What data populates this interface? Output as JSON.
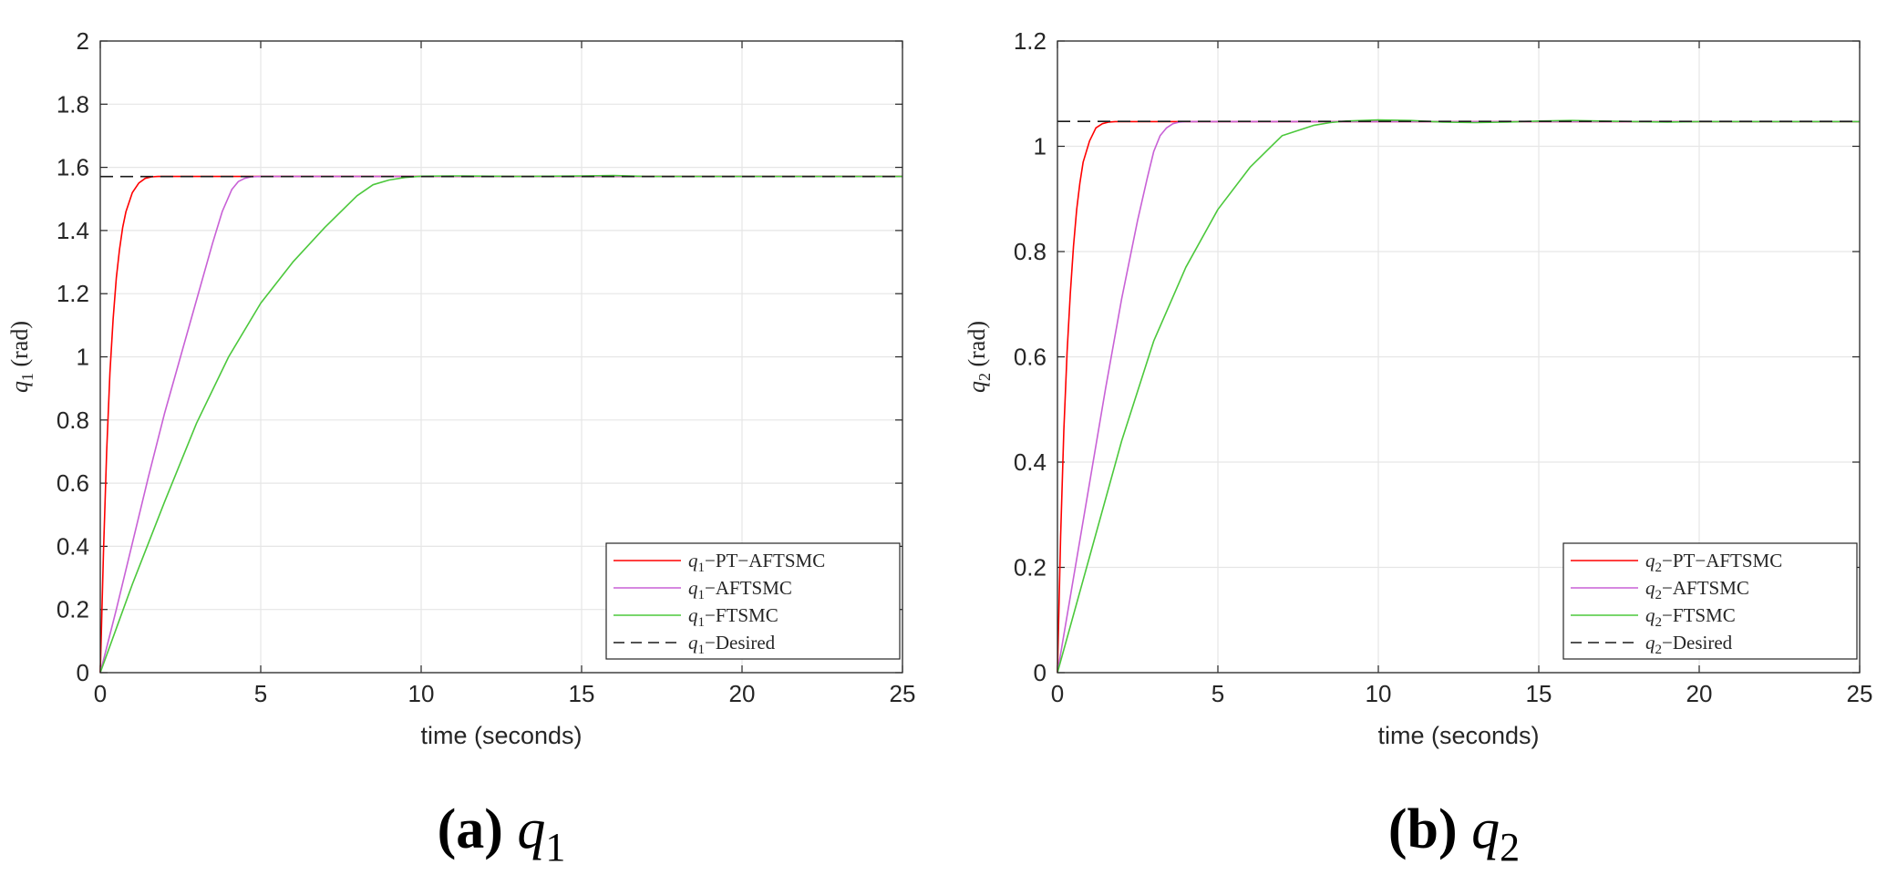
{
  "chart_data": [
    {
      "type": "line",
      "caption_label": "(a)",
      "caption_symbol": "q",
      "caption_index": "1",
      "ylabel_symbol": "q",
      "ylabel_index": "1",
      "ylabel_unit": "(rad)",
      "xlabel": "time (seconds)",
      "xlim": [
        0,
        25
      ],
      "ylim": [
        0,
        2
      ],
      "xticks": [
        "0",
        "5",
        "10",
        "15",
        "20",
        "25"
      ],
      "yticks": [
        "0",
        "0.2",
        "0.4",
        "0.6",
        "0.8",
        "1",
        "1.2",
        "1.4",
        "1.6",
        "1.8",
        "2"
      ],
      "grid": true,
      "legend_position": "bottom-right",
      "series": [
        {
          "name": "q1−PT−AFTSMC",
          "legend_symbol": "q",
          "legend_index": "1",
          "legend_suffix": "−PT−AFTSMC",
          "color": "#ff0000",
          "dash": "solid",
          "x": [
            0,
            0.1,
            0.2,
            0.3,
            0.4,
            0.5,
            0.6,
            0.7,
            0.8,
            1.0,
            1.2,
            1.4,
            1.6,
            1.8,
            2.0,
            25
          ],
          "y": [
            0,
            0.38,
            0.7,
            0.95,
            1.12,
            1.25,
            1.34,
            1.41,
            1.46,
            1.52,
            1.55,
            1.565,
            1.57,
            1.571,
            1.571,
            1.571
          ]
        },
        {
          "name": "q1−AFTSMC",
          "legend_symbol": "q",
          "legend_index": "1",
          "legend_suffix": "−AFTSMC",
          "color": "#c861d6",
          "dash": "solid",
          "x": [
            0,
            0.5,
            1.0,
            1.5,
            2.0,
            2.5,
            3.0,
            3.5,
            3.8,
            4.1,
            4.3,
            4.5,
            4.7,
            5.0,
            25
          ],
          "y": [
            0,
            0.2,
            0.41,
            0.62,
            0.82,
            1.0,
            1.18,
            1.36,
            1.46,
            1.53,
            1.555,
            1.565,
            1.57,
            1.571,
            1.571
          ]
        },
        {
          "name": "q1−FTSMC",
          "legend_symbol": "q",
          "legend_index": "1",
          "legend_suffix": "−FTSMC",
          "color": "#4cc83c",
          "dash": "solid",
          "x": [
            0,
            1,
            2,
            3,
            4,
            5,
            6,
            7,
            8,
            8.5,
            9,
            9.5,
            10,
            11,
            13,
            15,
            16,
            17,
            20,
            25
          ],
          "y": [
            0,
            0.28,
            0.54,
            0.79,
            1.0,
            1.17,
            1.3,
            1.41,
            1.51,
            1.545,
            1.56,
            1.568,
            1.572,
            1.573,
            1.571,
            1.573,
            1.574,
            1.571,
            1.571,
            1.571
          ]
        },
        {
          "name": "q1−Desired",
          "legend_symbol": "q",
          "legend_index": "1",
          "legend_suffix": "−Desired",
          "color": "#1a1a1a",
          "dash": "dashed",
          "x": [
            0,
            25
          ],
          "y": [
            1.5708,
            1.5708
          ]
        }
      ]
    },
    {
      "type": "line",
      "caption_label": "(b)",
      "caption_symbol": "q",
      "caption_index": "2",
      "ylabel_symbol": "q",
      "ylabel_index": "2",
      "ylabel_unit": "(rad)",
      "xlabel": "time (seconds)",
      "xlim": [
        0,
        25
      ],
      "ylim": [
        0,
        1.2
      ],
      "xticks": [
        "0",
        "5",
        "10",
        "15",
        "20",
        "25"
      ],
      "yticks": [
        "0",
        "0.2",
        "0.4",
        "0.6",
        "0.8",
        "1",
        "1.2"
      ],
      "grid": true,
      "legend_position": "bottom-right",
      "series": [
        {
          "name": "q2−PT−AFTSMC",
          "legend_symbol": "q",
          "legend_index": "2",
          "legend_suffix": "−PT−AFTSMC",
          "color": "#ff0000",
          "dash": "solid",
          "x": [
            0,
            0.1,
            0.2,
            0.3,
            0.4,
            0.5,
            0.6,
            0.7,
            0.8,
            1.0,
            1.2,
            1.4,
            1.6,
            1.8,
            2.0,
            25
          ],
          "y": [
            0,
            0.26,
            0.46,
            0.61,
            0.72,
            0.81,
            0.88,
            0.93,
            0.97,
            1.01,
            1.035,
            1.043,
            1.046,
            1.047,
            1.047,
            1.047
          ]
        },
        {
          "name": "q2−AFTSMC",
          "legend_symbol": "q",
          "legend_index": "2",
          "legend_suffix": "−AFTSMC",
          "color": "#c861d6",
          "dash": "solid",
          "x": [
            0,
            0.5,
            1.0,
            1.5,
            2.0,
            2.5,
            2.8,
            3.0,
            3.2,
            3.4,
            3.6,
            3.8,
            4.0,
            25
          ],
          "y": [
            0,
            0.18,
            0.36,
            0.54,
            0.71,
            0.86,
            0.94,
            0.99,
            1.02,
            1.035,
            1.043,
            1.046,
            1.047,
            1.047
          ]
        },
        {
          "name": "q2−FTSMC",
          "legend_symbol": "q",
          "legend_index": "2",
          "legend_suffix": "−FTSMC",
          "color": "#4cc83c",
          "dash": "solid",
          "x": [
            0,
            1,
            2,
            3,
            4,
            5,
            6,
            7,
            8,
            8.5,
            9,
            10,
            11,
            12,
            13,
            14,
            15,
            16,
            17,
            18,
            19,
            20,
            25
          ],
          "y": [
            0,
            0.22,
            0.44,
            0.63,
            0.77,
            0.88,
            0.96,
            1.02,
            1.04,
            1.045,
            1.048,
            1.05,
            1.049,
            1.046,
            1.045,
            1.046,
            1.048,
            1.049,
            1.048,
            1.047,
            1.046,
            1.047,
            1.047
          ]
        },
        {
          "name": "q2−Desired",
          "legend_symbol": "q",
          "legend_index": "2",
          "legend_suffix": "−Desired",
          "color": "#1a1a1a",
          "dash": "dashed",
          "x": [
            0,
            25
          ],
          "y": [
            1.0472,
            1.0472
          ]
        }
      ]
    }
  ]
}
